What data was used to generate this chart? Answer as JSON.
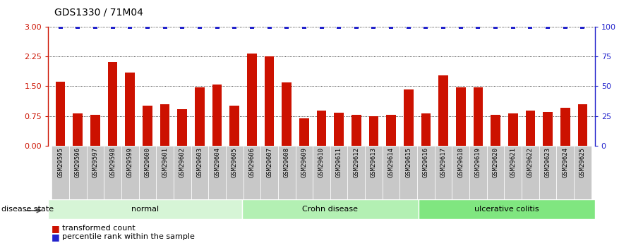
{
  "title": "GDS1330 / 71M04",
  "samples": [
    "GSM29595",
    "GSM29596",
    "GSM29597",
    "GSM29598",
    "GSM29599",
    "GSM29600",
    "GSM29601",
    "GSM29602",
    "GSM29603",
    "GSM29604",
    "GSM29605",
    "GSM29606",
    "GSM29607",
    "GSM29608",
    "GSM29609",
    "GSM29610",
    "GSM29611",
    "GSM29612",
    "GSM29613",
    "GSM29614",
    "GSM29615",
    "GSM29616",
    "GSM29617",
    "GSM29618",
    "GSM29619",
    "GSM29620",
    "GSM29621",
    "GSM29622",
    "GSM29623",
    "GSM29624",
    "GSM29625"
  ],
  "bar_values": [
    1.62,
    0.82,
    0.78,
    2.12,
    1.85,
    1.02,
    1.05,
    0.92,
    1.48,
    1.55,
    1.02,
    2.32,
    2.25,
    1.6,
    0.7,
    0.88,
    0.83,
    0.78,
    0.75,
    0.78,
    1.42,
    0.82,
    1.78,
    1.48,
    1.48,
    0.78,
    0.82,
    0.88,
    0.85,
    0.95,
    1.05
  ],
  "percentile_values": [
    100,
    100,
    100,
    100,
    100,
    100,
    100,
    100,
    100,
    100,
    100,
    100,
    100,
    100,
    100,
    100,
    100,
    100,
    100,
    100,
    100,
    100,
    100,
    100,
    100,
    100,
    100,
    100,
    100,
    100,
    100
  ],
  "bar_color": "#cc1100",
  "percentile_color": "#2222cc",
  "groups": [
    {
      "label": "normal",
      "start": 0,
      "end": 11,
      "color": "#d6f5d6"
    },
    {
      "label": "Crohn disease",
      "start": 11,
      "end": 21,
      "color": "#b3f0b3"
    },
    {
      "label": "ulcerative colitis",
      "start": 21,
      "end": 31,
      "color": "#80e680"
    }
  ],
  "ylim_left": [
    0,
    3
  ],
  "ylim_right": [
    0,
    100
  ],
  "yticks_left": [
    0,
    0.75,
    1.5,
    2.25,
    3
  ],
  "yticks_right": [
    0,
    25,
    50,
    75,
    100
  ],
  "disease_state_label": "disease state",
  "legend_bar_label": "transformed count",
  "legend_pct_label": "percentile rank within the sample",
  "bg_color": "#ffffff",
  "title_fontsize": 10,
  "tick_fontsize": 6.5,
  "bar_width": 0.55
}
